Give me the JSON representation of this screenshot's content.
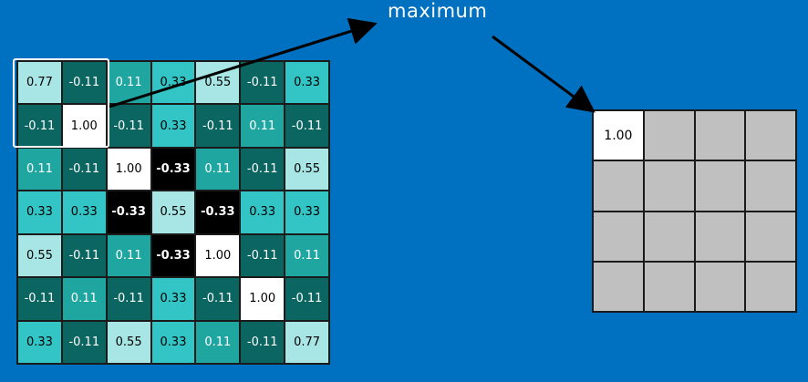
{
  "title": "maximum",
  "colors": {
    "background": "#0070C0",
    "strong_pos": "#FFFFFF",
    "light_pos": "#A8E6E6",
    "mid_pos": "#33C5C5",
    "low_pos": "#1FA6A0",
    "neg": "#0B6560",
    "strong_neg": "#000000",
    "empty_output": "#C0C0C0"
  },
  "input_grid": [
    [
      "0.77",
      "-0.11",
      "0.11",
      "0.33",
      "0.55",
      "-0.11",
      "0.33"
    ],
    [
      "-0.11",
      "1.00",
      "-0.11",
      "0.33",
      "-0.11",
      "0.11",
      "-0.11"
    ],
    [
      "0.11",
      "-0.11",
      "1.00",
      "-0.33",
      "0.11",
      "-0.11",
      "0.55"
    ],
    [
      "0.33",
      "0.33",
      "-0.33",
      "0.55",
      "-0.33",
      "0.33",
      "0.33"
    ],
    [
      "0.55",
      "-0.11",
      "0.11",
      "-0.33",
      "1.00",
      "-0.11",
      "0.11"
    ],
    [
      "-0.11",
      "0.11",
      "-0.11",
      "0.33",
      "-0.11",
      "1.00",
      "-0.11"
    ],
    [
      "0.33",
      "-0.11",
      "0.55",
      "0.33",
      "0.11",
      "-0.11",
      "0.77"
    ]
  ],
  "output_grid": [
    [
      "1.00",
      "",
      "",
      ""
    ],
    [
      "",
      "",
      "",
      ""
    ],
    [
      "",
      "",
      "",
      ""
    ],
    [
      "",
      "",
      "",
      ""
    ]
  ]
}
